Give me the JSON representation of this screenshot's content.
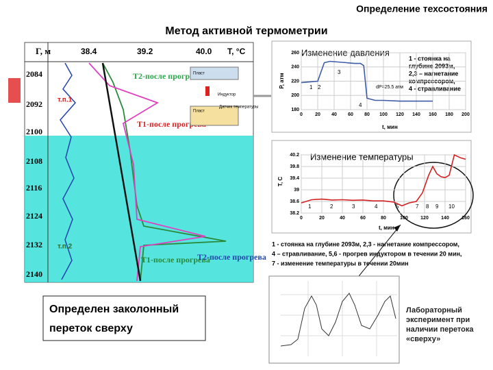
{
  "header": {
    "title": "Определение техсостояния",
    "subtitle": "Метод активной термометрии"
  },
  "log_chart": {
    "y_label": "Г, м",
    "x_label": "Т, °С",
    "x_ticks": [
      "38.4",
      "39.2",
      "40.0"
    ],
    "depth_ticks": [
      "2084",
      "2092",
      "2100",
      "2108",
      "2116",
      "2124",
      "2132",
      "2140"
    ],
    "annotations": [
      "Т2-после прогрева",
      "Т1-после прогрева",
      "т.п.1",
      "т.п.2",
      "Т1-после прогрева",
      "Т2-после прогрева"
    ],
    "inset": [
      "Пласт",
      "Индуктор",
      "Датчик температуры",
      "Пласт"
    ]
  },
  "pressure_chart": {
    "type": "line",
    "title": "Изменение давления",
    "y_label": "P, атм",
    "x_label": "t, мин",
    "color": "#3c5aa6",
    "x": [
      0,
      20,
      28,
      35,
      45,
      55,
      65,
      72,
      76,
      80,
      90,
      100,
      120,
      140,
      160
    ],
    "values": [
      218,
      220,
      246,
      248,
      247,
      246,
      245,
      245,
      242,
      196,
      193,
      193,
      192,
      192,
      192
    ],
    "xlim": [
      0,
      200
    ],
    "ylim": [
      180,
      260
    ],
    "xticks": [
      0,
      20,
      40,
      60,
      80,
      100,
      120,
      140,
      160,
      180,
      200
    ],
    "yticks": [
      180,
      200,
      220,
      240,
      260
    ],
    "segments": [
      "1",
      "2",
      "3",
      "4"
    ],
    "annotation": "dP=25.5 атм",
    "legend": [
      "1 - стоянка на",
      "глубине 2093м,",
      "2,3 – нагнетание",
      "компрессором,",
      "4 - стравливание"
    ]
  },
  "temperature_chart": {
    "type": "line",
    "title": "Изменение температуры",
    "y_label": "Т, С",
    "x_label": "t, мин",
    "color": "#d42020",
    "x": [
      0,
      10,
      20,
      30,
      40,
      50,
      60,
      70,
      80,
      90,
      98,
      105,
      112,
      118,
      124,
      128,
      132,
      136,
      140,
      144,
      149,
      155,
      160
    ],
    "values": [
      38.55,
      38.66,
      38.68,
      38.65,
      38.66,
      38.64,
      38.65,
      38.62,
      38.62,
      38.58,
      38.45,
      38.55,
      38.6,
      38.9,
      39.5,
      39.8,
      39.55,
      39.45,
      39.42,
      39.5,
      40.2,
      40.1,
      40.05
    ],
    "xlim": [
      0,
      160
    ],
    "ylim": [
      38.2,
      40.2
    ],
    "xticks": [
      0,
      20,
      40,
      60,
      80,
      100,
      120,
      140,
      160
    ],
    "yticks": [
      38.2,
      38.6,
      39,
      39.4,
      39.8,
      40.2
    ],
    "segments": [
      "1",
      "2",
      "3",
      "4",
      "5",
      "7",
      "8",
      "9",
      "10"
    ]
  },
  "caption": [
    "1 - стоянка на глубине 2093м, 2,3 - нагнетание компрессором,",
    "4 – стравливание, 5,6 - прогрев индуктором в течении 20 мин,",
    "7 - изменение температуры в течении 20мин"
  ],
  "lab_note": [
    "Лабораторный",
    "эксперимент при",
    "наличии перетока",
    "«сверху»"
  ],
  "conclusion": [
    "Определен заколонный",
    "переток сверху"
  ]
}
